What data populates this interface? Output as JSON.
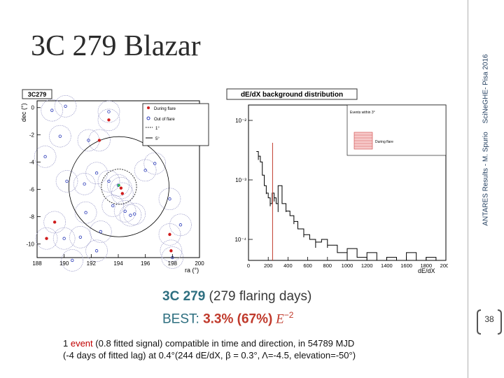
{
  "slide": {
    "title": "3C 279 Blazar",
    "footer_author": "ANTARES Results - M. Spurio",
    "footer_event": "SciNeGHE- Pisa 2016",
    "page_number": "38"
  },
  "sky_plot": {
    "panel_title": "3C279",
    "ylabel": "dec (°)",
    "xlabel": "ra (°)",
    "xlim": [
      188,
      200
    ],
    "ylim": [
      -11,
      0.5
    ],
    "xticks": [
      "188",
      "190",
      "192",
      "194",
      "196",
      "198",
      "200"
    ],
    "yticks": [
      "0",
      "-2",
      "-4",
      "-6",
      "-8",
      "-10"
    ],
    "legend": [
      "During flare",
      "Out of flare",
      "1°",
      "5°"
    ],
    "colors": {
      "during": "#d01c1c",
      "out": "#2a3ab8",
      "circle": "#9a9ac8"
    }
  },
  "hist_plot": {
    "panel_title": "dE/dX background distribution",
    "xlabel": "dE/dX",
    "xticks": [
      "0",
      "200",
      "400",
      "600",
      "800",
      "1000",
      "1200",
      "1400",
      "1600",
      "1800",
      "2000"
    ],
    "yticks": [
      "10⁻²",
      "10⁻³",
      "10⁻⁴"
    ],
    "legend_top": "Events within 3°",
    "legend_flare": "During flare",
    "marker_x": 244
  },
  "chart_data": [
    {
      "type": "scatter",
      "title": "3C279",
      "xlabel": "ra (°)",
      "ylabel": "dec (°)",
      "xlim": [
        188,
        200
      ],
      "ylim": [
        -11,
        0.5
      ],
      "series": [
        {
          "name": "During flare",
          "points": [
            [
              193.3,
              -0.9
            ],
            [
              192.6,
              -2.4
            ],
            [
              194.2,
              -5.9
            ],
            [
              194.3,
              -6.3
            ],
            [
              189.3,
              -8.4
            ],
            [
              188.7,
              -9.6
            ],
            [
              197.8,
              -9.3
            ],
            [
              197.9,
              -10.5
            ]
          ]
        },
        {
          "name": "Out of flare",
          "points": [
            [
              189.1,
              -0.2
            ],
            [
              190.1,
              0.1
            ],
            [
              193.3,
              -0.3
            ],
            [
              191.8,
              -2.4
            ],
            [
              189.7,
              -2.1
            ],
            [
              188.6,
              -3.6
            ],
            [
              196.7,
              -4.1
            ],
            [
              196.0,
              -4.6
            ],
            [
              191.5,
              -5.6
            ],
            [
              192.4,
              -4.8
            ],
            [
              193.3,
              -5.4
            ],
            [
              190.2,
              -5.4
            ],
            [
              194.0,
              -5.7
            ],
            [
              197.8,
              -6.7
            ],
            [
              193.6,
              -7.2
            ],
            [
              194.5,
              -7.6
            ],
            [
              195.2,
              -7.8
            ],
            [
              194.9,
              -7.9
            ],
            [
              191.6,
              -7.7
            ],
            [
              190.0,
              -9.6
            ],
            [
              191.2,
              -9.5
            ],
            [
              192.7,
              -9.1
            ],
            [
              198.6,
              -8.6
            ],
            [
              198.0,
              -11.0
            ],
            [
              190.6,
              -11.2
            ],
            [
              192.4,
              -10.5
            ]
          ]
        }
      ]
    },
    {
      "type": "histogram",
      "title": "dE/dX background distribution",
      "xlabel": "dE/dX",
      "xlim": [
        0,
        2000
      ],
      "log_y": true,
      "series": [
        {
          "name": "Events within 3°",
          "bins_x": [
            80,
            100,
            120,
            140,
            160,
            180,
            200,
            220,
            240,
            260,
            280,
            300,
            340,
            380,
            420,
            460,
            500,
            560,
            620,
            680,
            740,
            800,
            900,
            1000,
            1100,
            1200,
            1300,
            1400,
            1500,
            1600,
            1700,
            1800,
            1900
          ],
          "values": [
            0.003,
            0.0025,
            0.002,
            0.0012,
            0.0008,
            0.0006,
            0.0005,
            0.0004,
            0.0006,
            0.0005,
            0.0004,
            0.0008,
            0.0004,
            0.0003,
            0.00025,
            0.0002,
            0.00015,
            0.00012,
            0.0001,
            9e-05,
            0.0001,
            8e-05,
            6e-05,
            7e-05,
            5e-05,
            6e-05,
            4e-05,
            5e-05,
            4e-05,
            6e-05,
            4e-05,
            5e-05,
            4e-05
          ]
        }
      ],
      "annotation": {
        "name": "During flare",
        "x": 244
      }
    }
  ],
  "caption": {
    "line1_a": "3C 279",
    "line1_b": " (279 flaring days)",
    "line2_a": "BEST: ",
    "line2_b": "3.3% (67%)",
    "line2_c": " E",
    "line2_sup": "−2"
  },
  "event_text": {
    "count": "1 ",
    "word": "event",
    "line1_rest": " (0.8 fitted signal) compatible in time and direction, in 54789 MJD",
    "line2": "(-4 days of fitted lag) at 0.4°(244 dE/dX, β = 0.3°, Λ=-4.5, elevation=-50°)"
  }
}
